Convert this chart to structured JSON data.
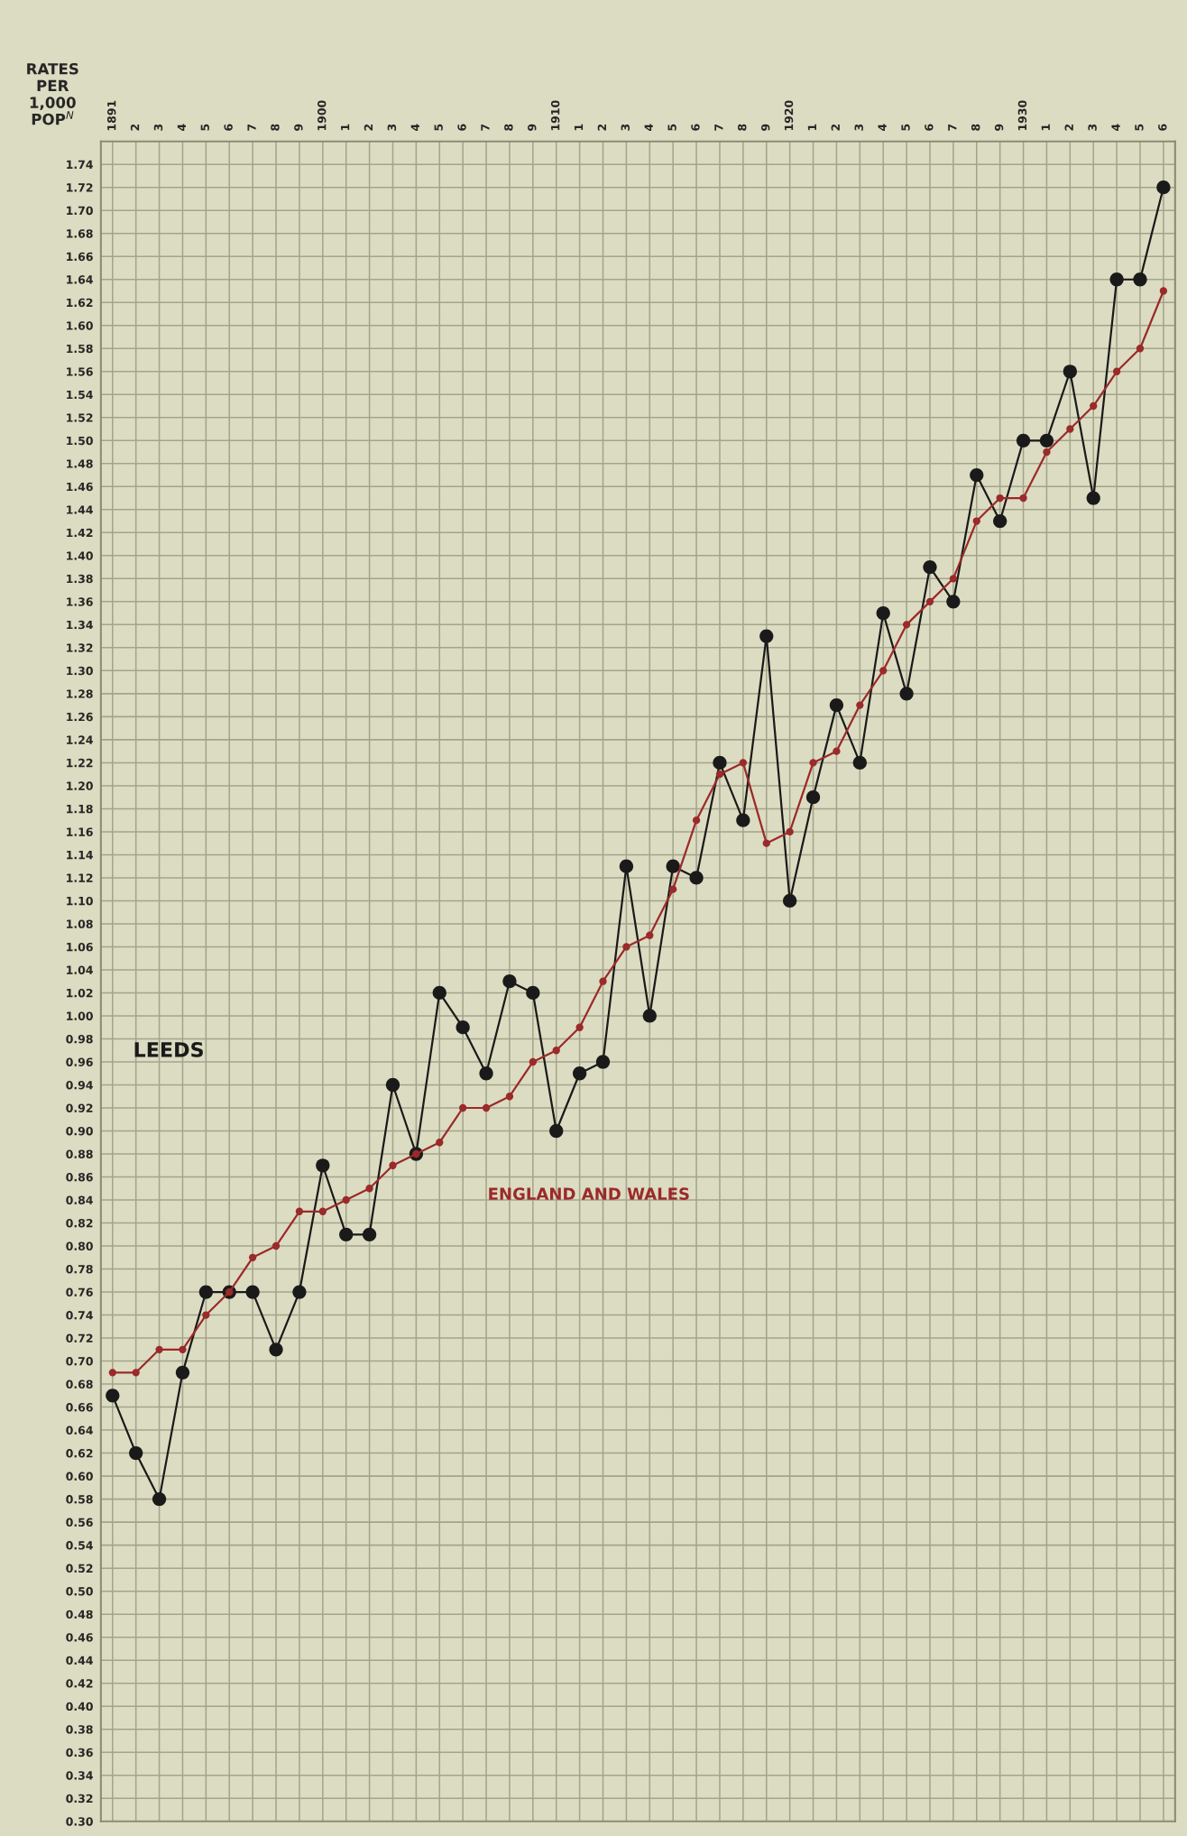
{
  "chart_data": {
    "type": "line",
    "ylabel": "RATES\nPER\n1,000\nPOP$^{N}$",
    "categories": [
      "1891",
      "2",
      "3",
      "4",
      "5",
      "6",
      "7",
      "8",
      "9",
      "1900",
      "1",
      "2",
      "3",
      "4",
      "5",
      "6",
      "7",
      "8",
      "9",
      "1910",
      "1",
      "2",
      "3",
      "4",
      "5",
      "6",
      "7",
      "8",
      "9",
      "1920",
      "1",
      "2",
      "3",
      "4",
      "5",
      "6",
      "7",
      "8",
      "9",
      "1930",
      "1",
      "2",
      "3",
      "4",
      "5",
      "6"
    ],
    "series": [
      {
        "name": "LEEDS",
        "color": "#1a1a1a",
        "values": [
          0.67,
          0.62,
          0.58,
          0.69,
          0.76,
          0.76,
          0.76,
          0.71,
          0.76,
          0.87,
          0.81,
          0.81,
          0.94,
          0.88,
          1.02,
          0.99,
          0.95,
          1.03,
          1.02,
          0.9,
          0.95,
          0.96,
          1.13,
          1.0,
          1.13,
          1.12,
          1.22,
          1.17,
          1.33,
          1.1,
          1.19,
          1.27,
          1.22,
          1.35,
          1.28,
          1.39,
          1.36,
          1.47,
          1.43,
          1.5,
          1.5,
          1.56,
          1.45,
          1.64,
          1.64,
          1.72
        ]
      },
      {
        "name": "ENGLAND AND WALES",
        "color": "#9b2a2a",
        "values": [
          0.69,
          0.69,
          0.71,
          0.71,
          0.74,
          0.76,
          0.79,
          0.8,
          0.83,
          0.83,
          0.84,
          0.85,
          0.87,
          0.88,
          0.89,
          0.92,
          0.92,
          0.93,
          0.96,
          0.97,
          0.99,
          1.03,
          1.06,
          1.07,
          1.11,
          1.17,
          1.21,
          1.22,
          1.15,
          1.16,
          1.22,
          1.23,
          1.27,
          1.3,
          1.34,
          1.36,
          1.38,
          1.43,
          1.45,
          1.45,
          1.49,
          1.51,
          1.53,
          1.56,
          1.58,
          1.63
        ]
      }
    ],
    "ylim": [
      0.3,
      1.76
    ],
    "yticks": [
      {
        "value": 0.3,
        "label": "0.30"
      },
      {
        "value": 0.32,
        "label": "0.32"
      },
      {
        "value": 0.34,
        "label": "0.34"
      },
      {
        "value": 0.36,
        "label": "0.36"
      },
      {
        "value": 0.38,
        "label": "0.38"
      },
      {
        "value": 0.4,
        "label": "0.40"
      },
      {
        "value": 0.42,
        "label": "0.42"
      },
      {
        "value": 0.44,
        "label": "0.44"
      },
      {
        "value": 0.46,
        "label": "0.46"
      },
      {
        "value": 0.48,
        "label": "0.48"
      },
      {
        "value": 0.5,
        "label": "0.50"
      },
      {
        "value": 0.52,
        "label": "0.52"
      },
      {
        "value": 0.54,
        "label": "0.54"
      },
      {
        "value": 0.56,
        "label": "0.56"
      },
      {
        "value": 0.58,
        "label": "0.58"
      },
      {
        "value": 0.6,
        "label": "0.60"
      },
      {
        "value": 0.62,
        "label": "0.62"
      },
      {
        "value": 0.64,
        "label": "0.64"
      },
      {
        "value": 0.66,
        "label": "0.66"
      },
      {
        "value": 0.68,
        "label": "0.68"
      },
      {
        "value": 0.7,
        "label": "0.70"
      },
      {
        "value": 0.72,
        "label": "0.72"
      },
      {
        "value": 0.74,
        "label": "0.74"
      },
      {
        "value": 0.76,
        "label": "0.76"
      },
      {
        "value": 0.78,
        "label": "0.78"
      },
      {
        "value": 0.8,
        "label": "0.80"
      },
      {
        "value": 0.82,
        "label": "0.82"
      },
      {
        "value": 0.84,
        "label": "0.84"
      },
      {
        "value": 0.86,
        "label": "0.86"
      },
      {
        "value": 0.88,
        "label": "0.88"
      },
      {
        "value": 0.9,
        "label": "0.90"
      },
      {
        "value": 0.92,
        "label": "0.92"
      },
      {
        "value": 0.94,
        "label": "0.94"
      },
      {
        "value": 0.96,
        "label": "0.96"
      },
      {
        "value": 0.98,
        "label": "0.98"
      },
      {
        "value": 1.0,
        "label": "1.00"
      },
      {
        "value": 1.02,
        "label": "1.02"
      },
      {
        "value": 1.04,
        "label": "1.04"
      },
      {
        "value": 1.06,
        "label": "1.06"
      },
      {
        "value": 1.08,
        "label": "1.08"
      },
      {
        "value": 1.1,
        "label": "1.10"
      },
      {
        "value": 1.12,
        "label": "1.12"
      },
      {
        "value": 1.14,
        "label": "1.14"
      },
      {
        "value": 1.16,
        "label": "1.16"
      },
      {
        "value": 1.18,
        "label": "1.18"
      },
      {
        "value": 1.2,
        "label": "1.20"
      },
      {
        "value": 1.22,
        "label": "1.22"
      },
      {
        "value": 1.24,
        "label": "1.24"
      },
      {
        "value": 1.26,
        "label": "1.26"
      },
      {
        "value": 1.28,
        "label": "1.28"
      },
      {
        "value": 1.3,
        "label": "1.30"
      },
      {
        "value": 1.32,
        "label": "1.32"
      },
      {
        "value": 1.34,
        "label": "1.34"
      },
      {
        "value": 1.36,
        "label": "1.36"
      },
      {
        "value": 1.38,
        "label": "1.38"
      },
      {
        "value": 1.4,
        "label": "1.40"
      },
      {
        "value": 1.42,
        "label": "1.42"
      },
      {
        "value": 1.44,
        "label": "1.44"
      },
      {
        "value": 1.46,
        "label": "1.46"
      },
      {
        "value": 1.48,
        "label": "1.48"
      },
      {
        "value": 1.5,
        "label": "1.50"
      },
      {
        "value": 1.52,
        "label": "1.52"
      },
      {
        "value": 1.54,
        "label": "1.54"
      },
      {
        "value": 1.56,
        "label": "1.56"
      },
      {
        "value": 1.58,
        "label": "1.58"
      },
      {
        "value": 1.6,
        "label": "1.60"
      },
      {
        "value": 1.62,
        "label": "1.62"
      },
      {
        "value": 1.64,
        "label": "1.64"
      },
      {
        "value": 1.66,
        "label": "1.66"
      },
      {
        "value": 1.68,
        "label": "1.68"
      },
      {
        "value": 1.7,
        "label": "1.70"
      },
      {
        "value": 1.72,
        "label": "1.72"
      },
      {
        "value": 1.74,
        "label": "1.74"
      }
    ],
    "grid": true,
    "marker": "circle",
    "line_style": "solid"
  }
}
